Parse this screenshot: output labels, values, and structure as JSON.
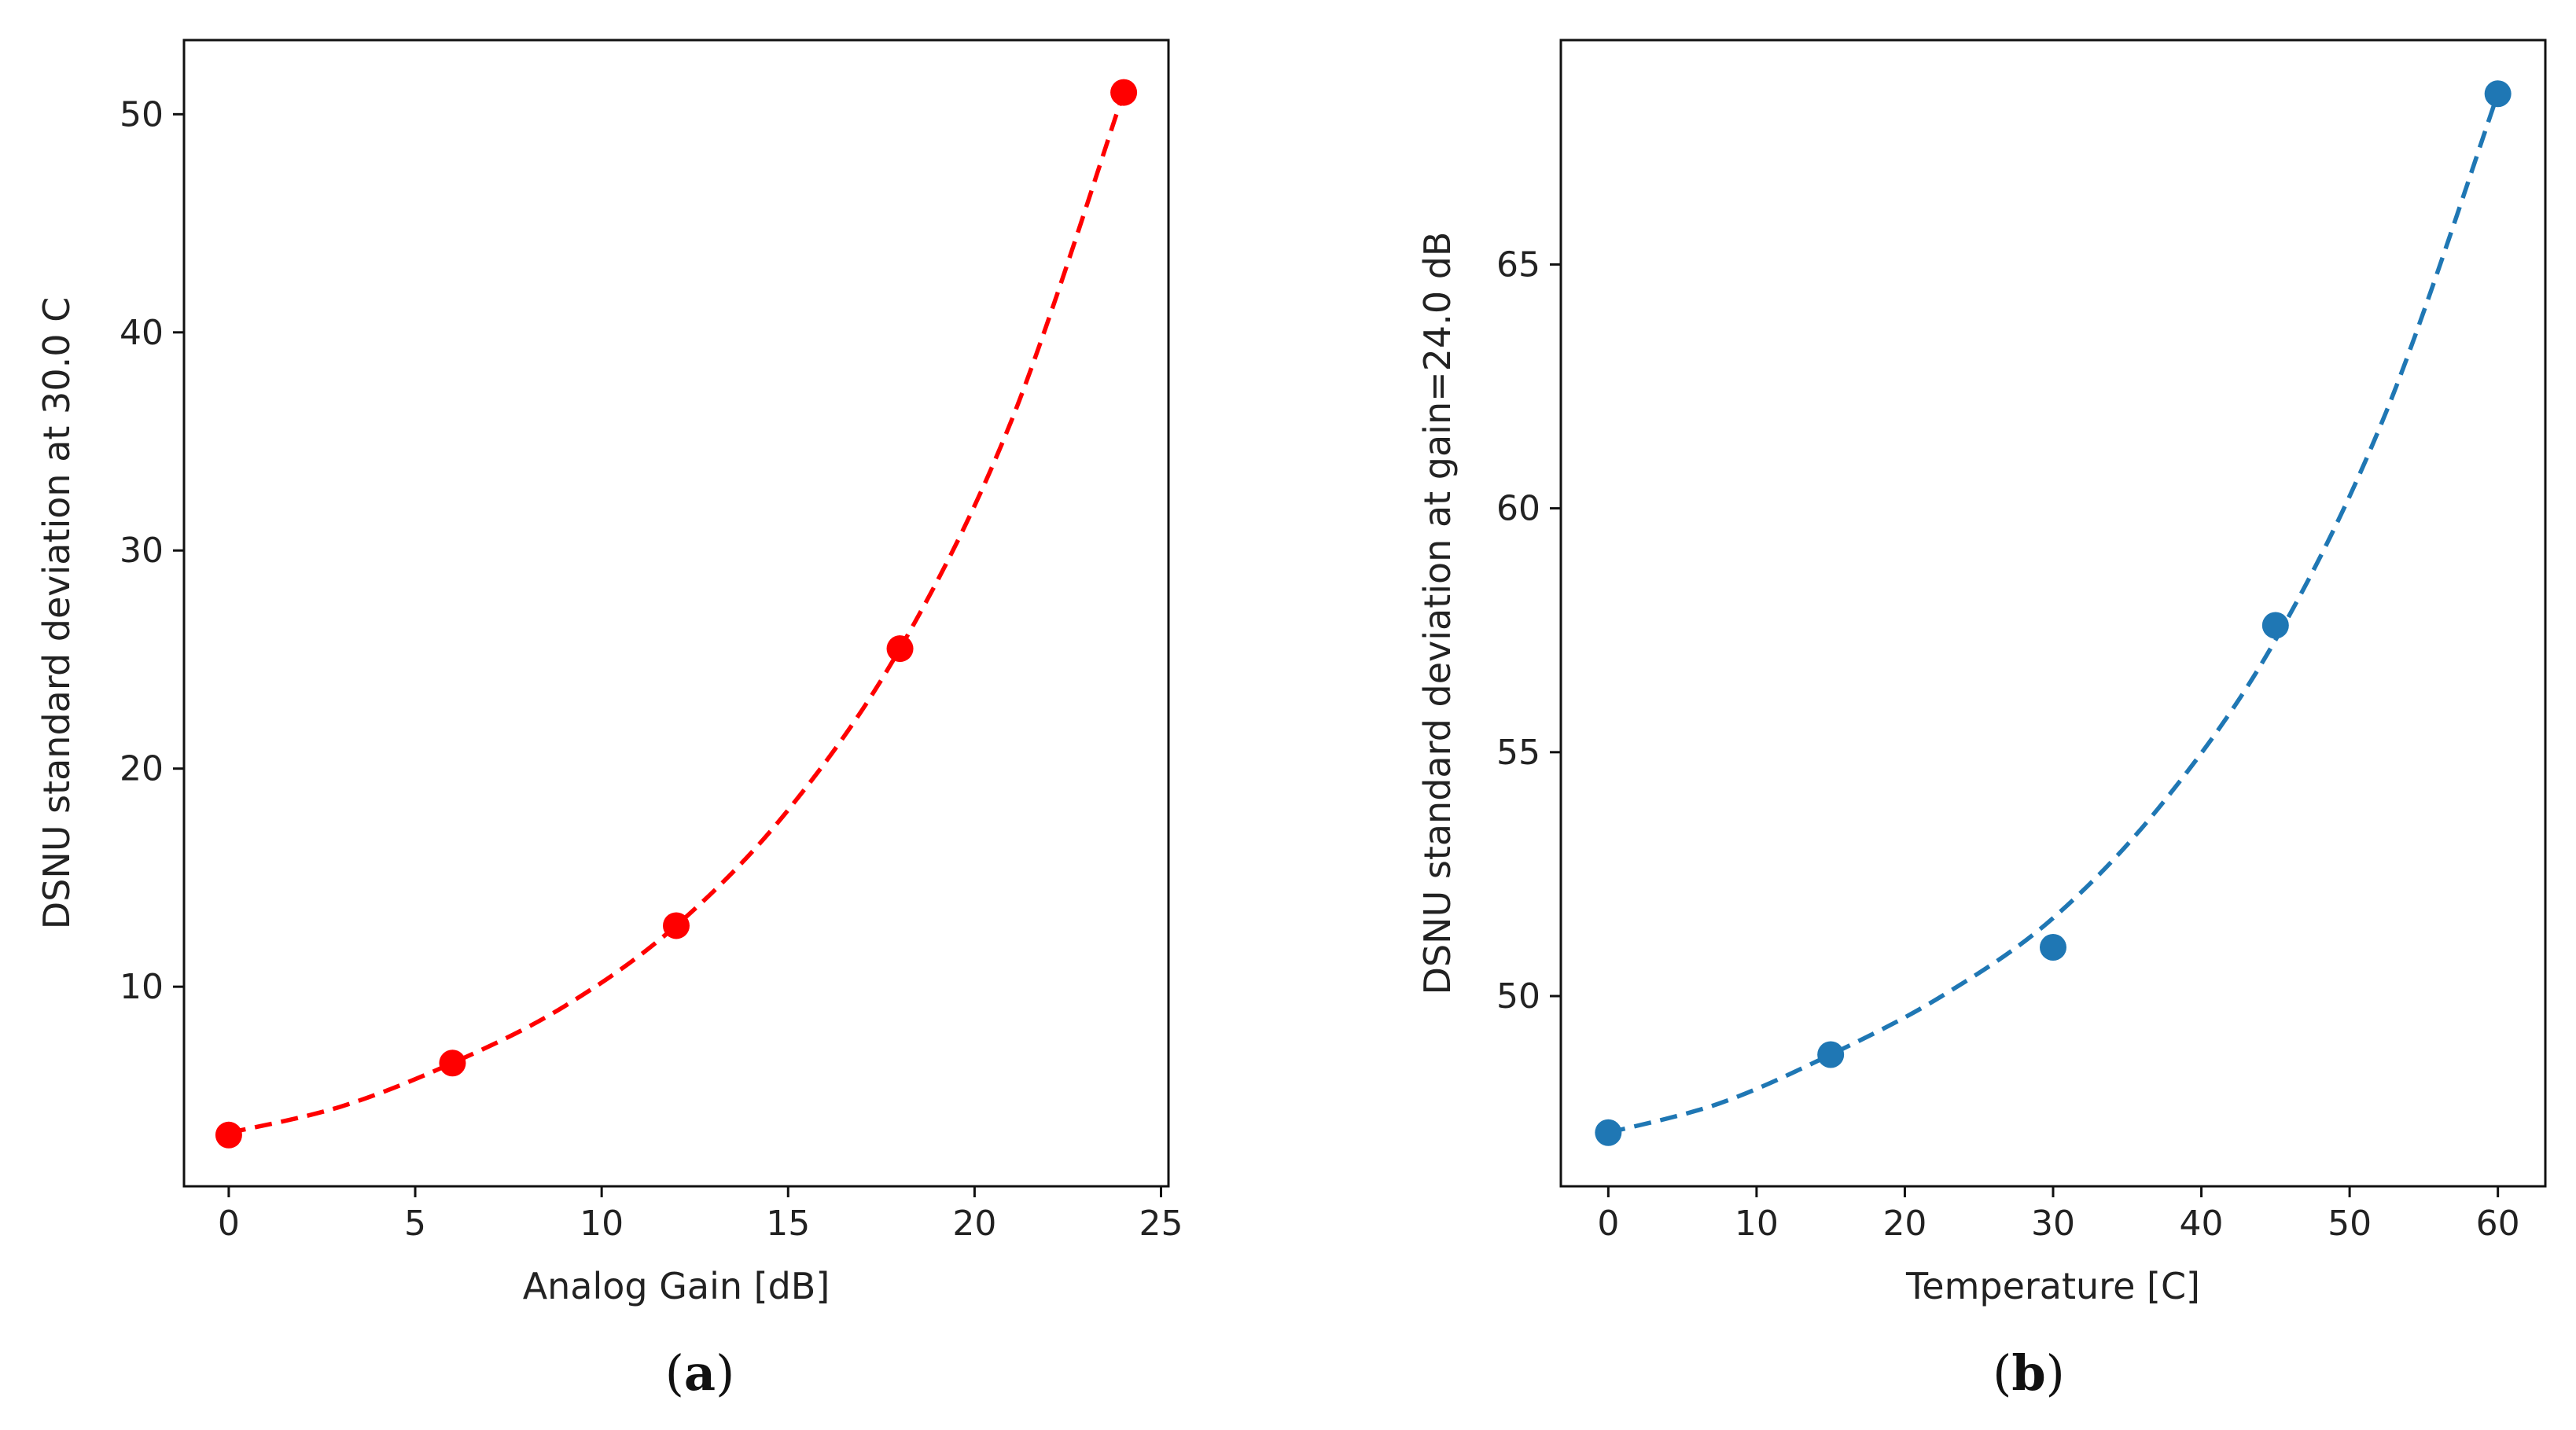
{
  "chart_data": [
    {
      "type": "scatter",
      "panel_label": "a",
      "xlabel": "Analog Gain [dB]",
      "ylabel": "DSNU standard deviation at 30.0 C",
      "xlim": [
        -1.2,
        25.2
      ],
      "ylim": [
        0.85,
        53.4
      ],
      "xticks": [
        0,
        5,
        10,
        15,
        20,
        25
      ],
      "yticks": [
        10,
        20,
        30,
        40,
        50
      ],
      "color": "#ff0000",
      "points": {
        "x": [
          0,
          6,
          12,
          18,
          24
        ],
        "y": [
          3.2,
          6.5,
          12.8,
          25.5,
          51.0
        ]
      },
      "fit": {
        "style": "dashed",
        "x": [
          0,
          3,
          6,
          9,
          12,
          15,
          18,
          21,
          24
        ],
        "y": [
          3.3,
          4.5,
          6.5,
          9.1,
          12.8,
          18.1,
          25.5,
          36.0,
          51.0
        ]
      }
    },
    {
      "type": "scatter",
      "panel_label": "b",
      "xlabel": "Temperature [C]",
      "ylabel": "DSNU standard deviation at gain=24.0 dB",
      "xlim": [
        -3.2,
        63.2
      ],
      "ylim": [
        46.1,
        69.6
      ],
      "xticks": [
        0,
        10,
        20,
        30,
        40,
        50,
        60
      ],
      "yticks": [
        50,
        55,
        60,
        65
      ],
      "color": "#1f77b4",
      "points": {
        "x": [
          0,
          15,
          30,
          45,
          60
        ],
        "y": [
          47.2,
          48.8,
          51.0,
          57.6,
          68.5
        ]
      },
      "fit": {
        "style": "dashed",
        "x": [
          0,
          7.5,
          15,
          22.5,
          30,
          37.5,
          45,
          52.5,
          60
        ],
        "y": [
          47.2,
          47.8,
          48.8,
          50.0,
          51.6,
          54.0,
          57.3,
          62.0,
          68.5
        ]
      }
    }
  ]
}
